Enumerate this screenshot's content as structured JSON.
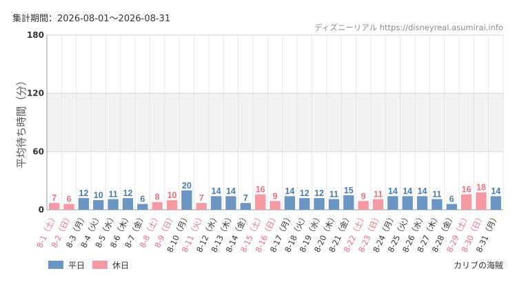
{
  "header": {
    "period": "集計期間：2026-08-01～2026-08-31",
    "source": "ディズニーリアル https://disneyreal.asumirai.info"
  },
  "chart_data": {
    "type": "bar",
    "ylabel": "平均待ち時間（分）",
    "ylim": [
      0,
      180
    ],
    "yticks": [
      0,
      60,
      120,
      180
    ],
    "shaded_band": [
      60,
      120
    ],
    "categories": [
      "8-1（土）",
      "8-2（日）",
      "8-3（月）",
      "8-4（火）",
      "8-5（水）",
      "8-6（木）",
      "8-7（金）",
      "8-8（土）",
      "8-9（日）",
      "8-10（月）",
      "8-11（火）",
      "8-12（水）",
      "8-13（木）",
      "8-14（金）",
      "8-15（土）",
      "8-16（日）",
      "8-17（月）",
      "8-18（火）",
      "8-19（水）",
      "8-20（木）",
      "8-21（金）",
      "8-22（土）",
      "8-23（日）",
      "8-24（月）",
      "8-25（火）",
      "8-26（水）",
      "8-27（木）",
      "8-28（金）",
      "8-29（土）",
      "8-30（日）",
      "8-31（月）"
    ],
    "values": [
      7,
      6,
      12,
      10,
      11,
      12,
      6,
      8,
      10,
      20,
      7,
      14,
      14,
      7,
      16,
      9,
      14,
      12,
      12,
      11,
      15,
      9,
      11,
      14,
      14,
      14,
      11,
      6,
      16,
      18,
      14
    ],
    "holiday": [
      true,
      true,
      false,
      false,
      false,
      false,
      false,
      true,
      true,
      false,
      true,
      false,
      false,
      false,
      true,
      true,
      false,
      false,
      false,
      false,
      false,
      true,
      true,
      false,
      false,
      false,
      false,
      false,
      true,
      true,
      false
    ],
    "series": [
      {
        "name": "平日",
        "color": "#6b96c4",
        "label_color": "#4a78b0"
      },
      {
        "name": "休日",
        "color": "#f59aa3",
        "label_color": "#ef6f7c"
      }
    ],
    "grid": true,
    "legend_position": "bottom-left"
  },
  "footer": {
    "attraction": "カリブの海賊"
  }
}
